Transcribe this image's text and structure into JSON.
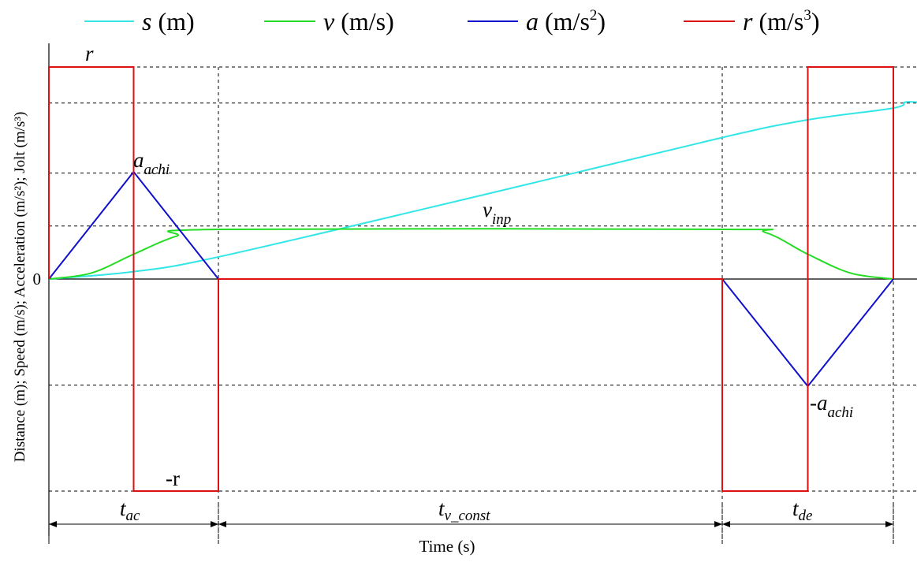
{
  "chart_data": {
    "type": "line",
    "title": "",
    "xlabel": "Time (s)",
    "ylabel": "Distance (m); Speed (m/s); Acceleration (m/s²); Jolt (m/s³)",
    "y_tick_labels": [
      "0"
    ],
    "grid": true,
    "legend_position": "top",
    "phases": [
      "t_ac",
      "t_v_const",
      "t_de"
    ],
    "series": [
      {
        "name": "s (m)",
        "color": "#33e6e6",
        "x": [
          0.0,
          0.5,
          1.0,
          2.0,
          3.0,
          3.5,
          4.0,
          4.5,
          5.0,
          5.2
        ],
        "y": [
          0.0,
          0.05,
          0.15,
          0.55,
          0.96,
          1.08,
          1.16,
          1.2,
          1.2,
          1.2
        ]
      },
      {
        "name": "v (m/s)",
        "color": "#22dd22",
        "x": [
          0.0,
          0.25,
          0.5,
          0.75,
          1.0,
          3.0,
          3.25,
          3.5,
          3.75,
          4.0
        ],
        "y": [
          0.0,
          0.06,
          0.25,
          0.43,
          0.5,
          0.5,
          0.47,
          0.25,
          0.06,
          0.0
        ]
      },
      {
        "name": "a (m/s²)",
        "color": "#1010cc",
        "x": [
          0.0,
          0.5,
          1.0,
          3.0,
          3.5,
          4.0
        ],
        "y": [
          0.0,
          1.0,
          0.0,
          0.0,
          -1.0,
          0.0
        ]
      },
      {
        "name": "r (m/s³)",
        "color": "#dd1111",
        "x": [
          0.0,
          0.0,
          0.5,
          0.5,
          1.0,
          1.0,
          3.0,
          3.0,
          3.5,
          3.5,
          4.0,
          4.0
        ],
        "y": [
          0.0,
          2.0,
          2.0,
          -2.0,
          -2.0,
          0.0,
          0.0,
          -2.0,
          -2.0,
          2.0,
          2.0,
          0.0
        ]
      }
    ],
    "annotations": {
      "r": {
        "main": "r",
        "sub": ""
      },
      "neg_r": {
        "main": "-r",
        "sub": ""
      },
      "a_achi": {
        "main": "a",
        "sub": "achi"
      },
      "neg_a_achi": {
        "main": "-a",
        "sub": "achi"
      },
      "v_inp": {
        "main": "v",
        "sub": "inp"
      },
      "t_ac": {
        "main": "t",
        "sub": "ac"
      },
      "t_v_const": {
        "main": "t",
        "sub": "v_const"
      },
      "t_de": {
        "main": "t",
        "sub": "de"
      }
    }
  },
  "legend": [
    {
      "sym": "s",
      "unit": " (m)",
      "sup": ""
    },
    {
      "sym": "v",
      "unit": " (m/s)",
      "sup": ""
    },
    {
      "sym": "a",
      "unit": " (m/s",
      "sup": "2",
      "close": ")"
    },
    {
      "sym": "r",
      "unit": " (m/s",
      "sup": "3",
      "close": ")"
    }
  ]
}
